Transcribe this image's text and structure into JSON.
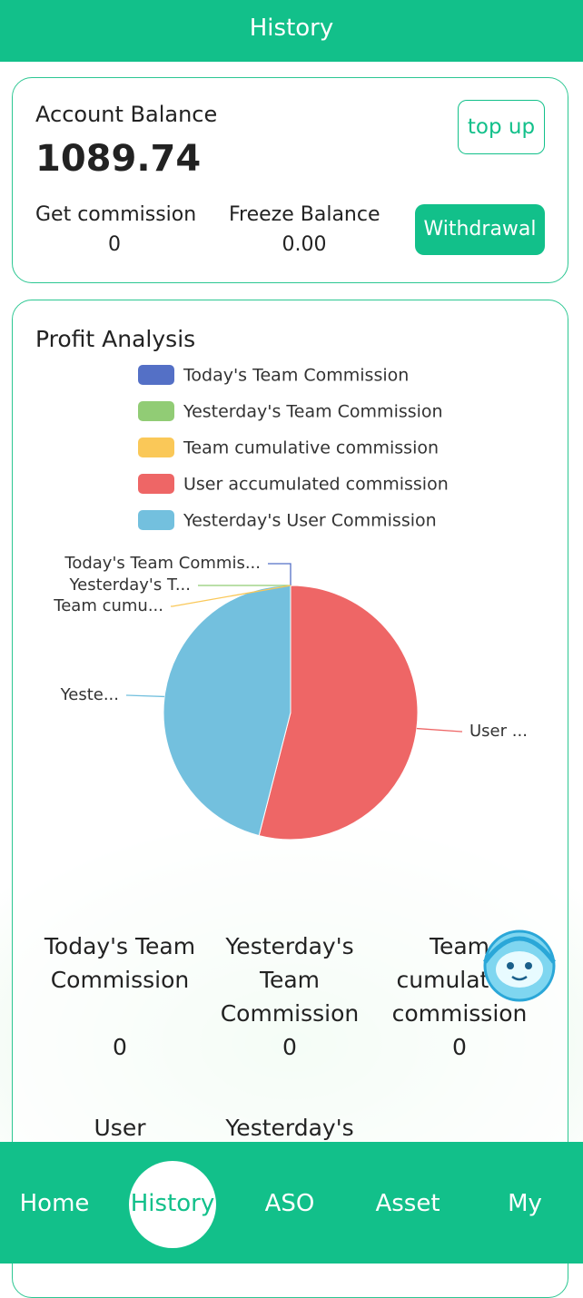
{
  "header": {
    "title": "History"
  },
  "account": {
    "title": "Account Balance",
    "balance": "1089.74",
    "top_up": "top up",
    "withdrawal": "Withdrawal",
    "get_commission": {
      "label": "Get commission",
      "value": "0"
    },
    "freeze_balance": {
      "label": "Freeze Balance",
      "value": "0.00"
    }
  },
  "profit": {
    "title": "Profit Analysis"
  },
  "chart_data": {
    "type": "pie",
    "categories": [
      "Today's Team Commission",
      "Yesterday's Team Commission",
      "Team cumulative commission",
      "User accumulated commission",
      "Yesterday's User Commission"
    ],
    "labels": [
      "Today's Team Commis...",
      "Yesterday's T...",
      "Team cumu...",
      "User ...",
      "Yeste..."
    ],
    "values": [
      0,
      0,
      0,
      54,
      46
    ],
    "colors": [
      "#5470c6",
      "#91cc75",
      "#fac858",
      "#ee6666",
      "#73c0de"
    ]
  },
  "stats": [
    {
      "label": "Today's Team Commission",
      "value": "0"
    },
    {
      "label": "Yesterday's Team Commission",
      "value": "0"
    },
    {
      "label": "Team cumulative commission",
      "value": "0"
    },
    {
      "label": "User accumulated commission"
    },
    {
      "label": "Yesterday's User Commission"
    }
  ],
  "nav": {
    "items": [
      "Home",
      "History",
      "ASO",
      "Asset",
      "My"
    ],
    "active": 1
  }
}
